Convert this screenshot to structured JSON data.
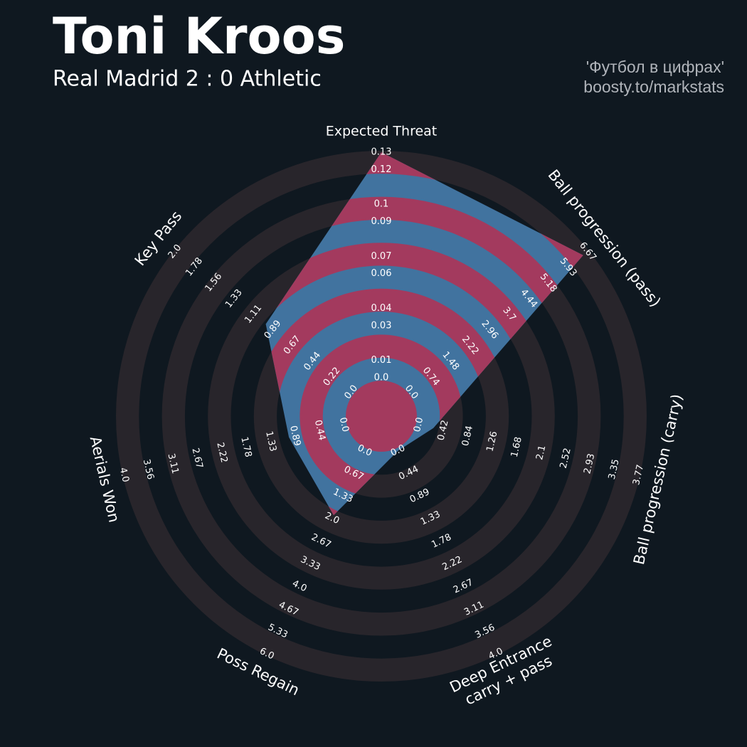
{
  "chart_data": {
    "type": "radar",
    "title": "Toni Kroos",
    "subtitle": "Real Madrid 2 : 0 Athletic",
    "credits": [
      "'Футбол в цифрах'",
      "boosty.to/markstats"
    ],
    "colors": {
      "background": "#0f1820",
      "rings": "#28252b",
      "polygon": "#41739f",
      "polygon_rings": "#a33a5e"
    },
    "params": [
      {
        "label": "Expected Threat",
        "value": 0.13,
        "rlim": [
          0,
          0.13
        ],
        "ticks": [
          {
            "value": 0,
            "label": "0.0"
          },
          0.01,
          0.03,
          0.04,
          0.06,
          0.07,
          0.09,
          0.1,
          0.12,
          0.13
        ]
      },
      {
        "label": "Ball progression (pass)",
        "value": 6.5,
        "rlim": [
          0,
          6.67
        ],
        "ticks": [
          {
            "value": 0,
            "label": "0.0"
          },
          0.74,
          1.48,
          2.22,
          2.96,
          3.7,
          4.44,
          5.18,
          5.93,
          6.67
        ]
      },
      {
        "label": "Ball progression (carry)",
        "value": 0.25,
        "rlim": [
          0,
          3.77
        ],
        "ticks": [
          {
            "value": 0,
            "label": "0.0"
          },
          0.42,
          0.84,
          1.26,
          1.68,
          2.1,
          2.52,
          2.93,
          3.35,
          3.77
        ]
      },
      {
        "label": [
          "Deep Entrance",
          "carry + pass"
        ],
        "value": 0,
        "rlim": [
          0,
          4
        ],
        "ticks": [
          {
            "value": 0,
            "label": "0.0"
          },
          0.44,
          0.89,
          1.33,
          1.78,
          2.22,
          2.67,
          3.11,
          3.56,
          {
            "value": 4,
            "label": "4.0"
          }
        ]
      },
      {
        "label": "Poss Regain",
        "value": 1.9,
        "rlim": [
          0,
          6
        ],
        "ticks": [
          {
            "value": 0,
            "label": "0.0"
          },
          0.67,
          1.33,
          {
            "value": 2,
            "label": "2.0"
          },
          2.67,
          3.33,
          {
            "value": 4,
            "label": "4.0"
          },
          4.67,
          5.33,
          {
            "value": 6,
            "label": "6.0"
          }
        ]
      },
      {
        "label": "Aerials Won",
        "value": 1.0,
        "rlim": [
          0,
          4
        ],
        "ticks": [
          {
            "value": 0,
            "label": "0.0"
          },
          0.44,
          0.89,
          1.33,
          1.78,
          2.22,
          2.67,
          3.11,
          3.56,
          {
            "value": 4,
            "label": "4.0"
          }
        ]
      },
      {
        "label": "Key Pass",
        "value": 0.97,
        "rlim": [
          0,
          2
        ],
        "ticks": [
          {
            "value": 0,
            "label": "0.0"
          },
          0.22,
          0.44,
          0.67,
          0.89,
          1.11,
          1.33,
          1.56,
          1.78,
          {
            "value": 2,
            "label": "2.0"
          }
        ]
      }
    ]
  }
}
